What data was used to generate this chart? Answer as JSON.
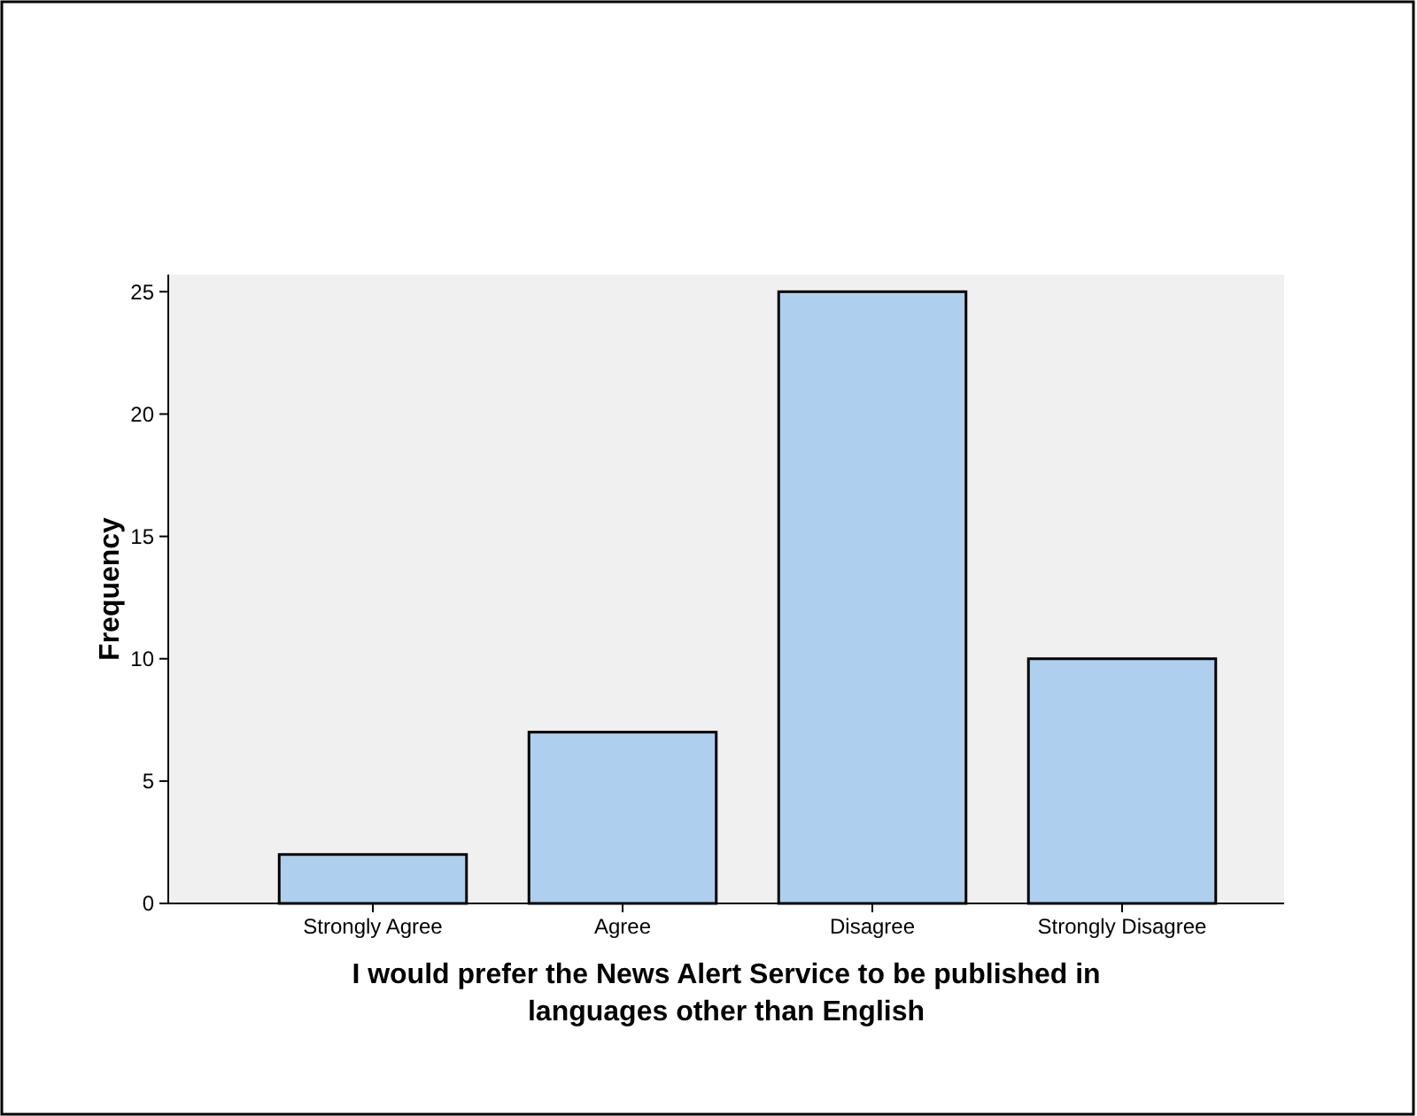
{
  "chart_data": {
    "type": "bar",
    "xlabel": "I would prefer the News Alert Service to be published in languages other than English",
    "ylabel": "Frequency",
    "categories": [
      "Strongly Agree",
      "Agree",
      "Disagree",
      "Strongly Disagree"
    ],
    "values": [
      2,
      7,
      25,
      10
    ],
    "color": "#aecfed",
    "ylim": [
      0,
      25.7
    ],
    "yticks": [
      0,
      5,
      10,
      15,
      20,
      25
    ],
    "grid": false
  }
}
